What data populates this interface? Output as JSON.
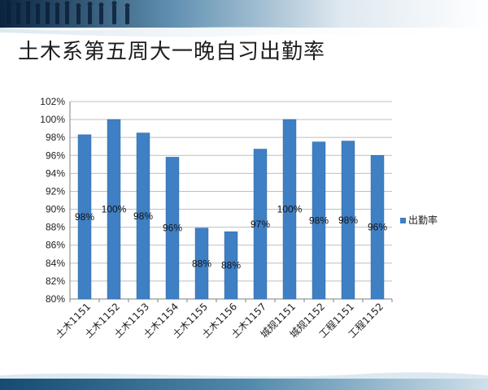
{
  "slide": {
    "title": "土木系第五周大一晚自习出勤率"
  },
  "colors": {
    "bar": "#3f7fc4",
    "bar_edge": "#2f6aa8",
    "grid": "#bfbfbf",
    "header_top": "#0b2a4a",
    "footer": "#1f5e88"
  },
  "chart_data": {
    "type": "bar",
    "title": "",
    "xlabel": "",
    "ylabel": "",
    "categories": [
      "土木1151",
      "土木1152",
      "土木1153",
      "土木1154",
      "土木1155",
      "土木1156",
      "土木1157",
      "城规1151",
      "城规1152",
      "工程1151",
      "工程1152"
    ],
    "series": [
      {
        "name": "出勤率",
        "values": [
          98.3,
          100,
          98.5,
          95.8,
          87.9,
          87.5,
          96.7,
          100,
          97.5,
          97.6,
          96.0
        ],
        "labels": [
          "98%",
          "100%",
          "98%",
          "96%",
          "88%",
          "88%",
          "97%",
          "100%",
          "98%",
          "98%",
          "96%"
        ]
      }
    ],
    "ylim": [
      80,
      102
    ],
    "yticks": [
      80,
      82,
      84,
      86,
      88,
      90,
      92,
      94,
      96,
      98,
      100,
      102
    ],
    "ytick_labels": [
      "80%",
      "82%",
      "84%",
      "86%",
      "88%",
      "90%",
      "92%",
      "94%",
      "96%",
      "98%",
      "100%",
      "102%"
    ],
    "grid": true,
    "legend": "right"
  }
}
